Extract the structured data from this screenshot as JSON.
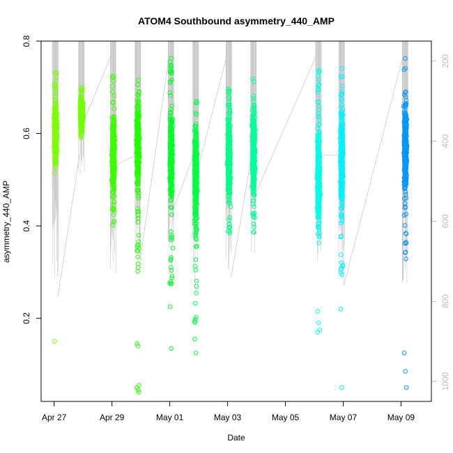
{
  "chart_data": {
    "type": "scatter",
    "title": "ATOM4 Southbound asymmetry_440_AMP",
    "xlabel": "Date",
    "ylabel": "asymmetry_440_AMP",
    "x_ticks": [
      "Apr 27",
      "Apr 29",
      "May 01",
      "May 03",
      "May 05",
      "May 07",
      "May 09"
    ],
    "x_tick_days": [
      0,
      2,
      4,
      6,
      8,
      10,
      12
    ],
    "xlim_days": [
      -0.45,
      13.05
    ],
    "ylim": [
      0.02,
      0.8
    ],
    "y_ticks": [
      0.2,
      0.4,
      0.6,
      0.8
    ],
    "y_tick_labels": [
      "0.2",
      "0.4",
      "0.6",
      "0.8"
    ],
    "y2_ticks": [
      200,
      400,
      600,
      800,
      1000
    ],
    "y2_tick_labels": [
      "200",
      "400",
      "600",
      "800",
      "1000"
    ],
    "y2_range_at_bottom_top": [
      1050,
      150
    ],
    "grid": false,
    "legend": "none",
    "colors": {
      "depth_trace": "#c8c8c8",
      "frame": "#000000",
      "right_axis": "#bdbdbd"
    },
    "series": [
      {
        "day": 0.05,
        "color": "#7cff00",
        "y_core": [
          0.52,
          0.68
        ],
        "y_full": [
          0.515,
          0.74
        ],
        "outliers": [
          0.15
        ],
        "depth_range": [
          185,
          790
        ]
      },
      {
        "day": 0.95,
        "color": "#70ff00",
        "y_core": [
          0.6,
          0.69
        ],
        "y_full": [
          0.59,
          0.705
        ],
        "outliers": [],
        "depth_range": [
          185,
          500
        ]
      },
      {
        "day": 2.05,
        "color": "#3cff00",
        "y_core": [
          0.44,
          0.68
        ],
        "y_full": [
          0.37,
          0.73
        ],
        "outliers": [],
        "depth_range": [
          185,
          760
        ]
      },
      {
        "day": 2.9,
        "color": "#22ff00",
        "y_core": [
          0.46,
          0.7
        ],
        "y_full": [
          0.3,
          0.73
        ],
        "outliers": [
          0.145,
          0.14,
          0.055,
          0.05,
          0.045,
          0.04
        ],
        "depth_range": [
          185,
          700
        ]
      },
      {
        "day": 4.05,
        "color": "#00ff2a",
        "y_core": [
          0.42,
          0.68
        ],
        "y_full": [
          0.27,
          0.765
        ],
        "outliers": [
          0.225,
          0.135
        ],
        "depth_range": [
          185,
          720
        ]
      },
      {
        "day": 4.9,
        "color": "#00ff40",
        "y_core": [
          0.36,
          0.66
        ],
        "y_full": [
          0.19,
          0.71
        ],
        "outliers": [
          0.155,
          0.125
        ],
        "depth_range": [
          185,
          770
        ]
      },
      {
        "day": 6.05,
        "color": "#00ff88",
        "y_core": [
          0.43,
          0.67
        ],
        "y_full": [
          0.38,
          0.705
        ],
        "outliers": [],
        "depth_range": [
          185,
          740
        ]
      },
      {
        "day": 6.9,
        "color": "#00ff98",
        "y_core": [
          0.43,
          0.7
        ],
        "y_full": [
          0.38,
          0.73
        ],
        "outliers": [],
        "depth_range": [
          185,
          680
        ]
      },
      {
        "day": 9.15,
        "color": "#00ffe8",
        "y_core": [
          0.37,
          0.65
        ],
        "y_full": [
          0.35,
          0.745
        ],
        "outliers": [
          0.215,
          0.19,
          0.175,
          0.17
        ],
        "depth_range": [
          185,
          735
        ]
      },
      {
        "day": 9.95,
        "color": "#00f2ff",
        "y_core": [
          0.4,
          0.69
        ],
        "y_full": [
          0.28,
          0.745
        ],
        "outliers": [
          0.22,
          0.05
        ],
        "depth_range": [
          185,
          760
        ]
      },
      {
        "day": 12.15,
        "color": "#0098ff",
        "y_core": [
          0.45,
          0.69
        ],
        "y_full": [
          0.325,
          0.775
        ],
        "outliers": [
          0.125,
          0.085,
          0.05
        ],
        "depth_range": [
          185,
          780
        ]
      }
    ]
  }
}
